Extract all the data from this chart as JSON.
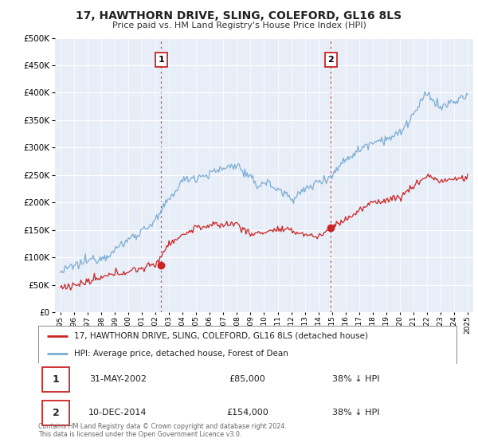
{
  "title": "17, HAWTHORN DRIVE, SLING, COLEFORD, GL16 8LS",
  "subtitle": "Price paid vs. HM Land Registry's House Price Index (HPI)",
  "property_label": "17, HAWTHORN DRIVE, SLING, COLEFORD, GL16 8LS (detached house)",
  "hpi_label": "HPI: Average price, detached house, Forest of Dean",
  "sale1_date": "31-MAY-2002",
  "sale1_price": "£85,000",
  "sale1_note": "38% ↓ HPI",
  "sale2_date": "10-DEC-2014",
  "sale2_price": "£154,000",
  "sale2_note": "38% ↓ HPI",
  "footer": "Contains HM Land Registry data © Crown copyright and database right 2024.\nThis data is licensed under the Open Government Licence v3.0.",
  "ylim": [
    0,
    500000
  ],
  "yticks": [
    0,
    50000,
    100000,
    150000,
    200000,
    250000,
    300000,
    350000,
    400000,
    450000,
    500000
  ],
  "hpi_color": "#7aadd4",
  "price_color": "#cc2222",
  "marker1_year": 2002.42,
  "marker1_price": 85000,
  "marker2_year": 2014.92,
  "marker2_price": 154000,
  "fig_bg": "#ffffff",
  "plot_bg": "#e8eef8"
}
